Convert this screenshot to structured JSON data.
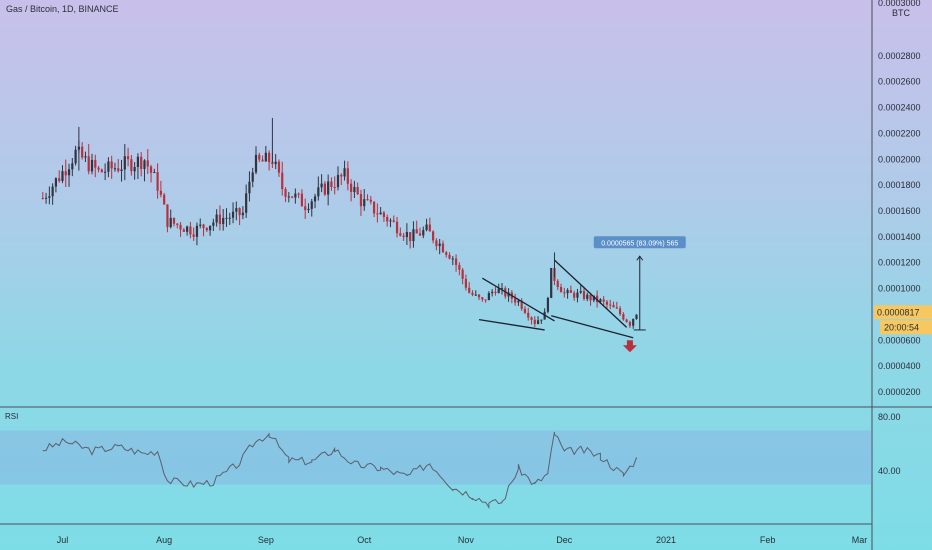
{
  "chart_data": {
    "type": "candlestick",
    "title": "Gas / Bitcoin, 1D, BINANCE",
    "unit": "BTC",
    "y_ticks": [
      "0.0000200",
      "0.0000400",
      "0.0000600",
      "0.0001000",
      "0.0001200",
      "0.0001400",
      "0.0001600",
      "0.0001800",
      "0.0002000",
      "0.0002200",
      "0.0002400",
      "0.0002600",
      "0.0002800"
    ],
    "top_tick": "0.0003000",
    "x_ticks": [
      "Jul",
      "Aug",
      "Sep",
      "Oct",
      "Nov",
      "Dec",
      "2021",
      "Feb",
      "Mar"
    ],
    "ylim": [
      6e-06,
      0.000303
    ],
    "close_series": [
      {
        "date": "2020-06-25",
        "value": 0.00017
      },
      {
        "date": "2020-07-01",
        "value": 0.00019
      },
      {
        "date": "2020-07-05",
        "value": 0.000205
      },
      {
        "date": "2020-07-12",
        "value": 0.00019
      },
      {
        "date": "2020-07-20",
        "value": 0.000196
      },
      {
        "date": "2020-07-26",
        "value": 0.0002
      },
      {
        "date": "2020-07-30",
        "value": 0.00018
      },
      {
        "date": "2020-08-02",
        "value": 0.000152
      },
      {
        "date": "2020-08-10",
        "value": 0.000145
      },
      {
        "date": "2020-08-18",
        "value": 0.000154
      },
      {
        "date": "2020-08-25",
        "value": 0.000158
      },
      {
        "date": "2020-08-28",
        "value": 0.000196
      },
      {
        "date": "2020-09-03",
        "value": 0.0002
      },
      {
        "date": "2020-09-06",
        "value": 0.000178
      },
      {
        "date": "2020-09-13",
        "value": 0.000165
      },
      {
        "date": "2020-09-20",
        "value": 0.00018
      },
      {
        "date": "2020-09-25",
        "value": 0.000187
      },
      {
        "date": "2020-09-30",
        "value": 0.000168
      },
      {
        "date": "2020-10-08",
        "value": 0.000154
      },
      {
        "date": "2020-10-15",
        "value": 0.00014
      },
      {
        "date": "2020-10-20",
        "value": 0.000145
      },
      {
        "date": "2020-10-28",
        "value": 0.000124
      },
      {
        "date": "2020-11-02",
        "value": 9.7e-05
      },
      {
        "date": "2020-11-06",
        "value": 9e-05
      },
      {
        "date": "2020-11-10",
        "value": 0.0001
      },
      {
        "date": "2020-11-17",
        "value": 9e-05
      },
      {
        "date": "2020-11-22",
        "value": 7.4e-05
      },
      {
        "date": "2020-11-25",
        "value": 8e-05
      },
      {
        "date": "2020-11-27",
        "value": 0.000112
      },
      {
        "date": "2020-12-01",
        "value": 9.6e-05
      },
      {
        "date": "2020-12-06",
        "value": 9.5e-05
      },
      {
        "date": "2020-12-12",
        "value": 9e-05
      },
      {
        "date": "2020-12-17",
        "value": 8.3e-05
      },
      {
        "date": "2020-12-21",
        "value": 7.3e-05
      },
      {
        "date": "2020-12-23",
        "value": 8.17e-05
      }
    ],
    "last_price": "0.0000817",
    "countdown": "20:00:54",
    "measure_label": "0.0000565 (83.09%) 565",
    "rsi": {
      "label": "RSI",
      "ticks": [
        "80.00",
        "40.00"
      ],
      "band_upper": 70,
      "band_lower": 30,
      "values": [
        {
          "date": "2020-06-25",
          "value": 56
        },
        {
          "date": "2020-07-02",
          "value": 62
        },
        {
          "date": "2020-07-10",
          "value": 55
        },
        {
          "date": "2020-07-18",
          "value": 58
        },
        {
          "date": "2020-07-26",
          "value": 53
        },
        {
          "date": "2020-07-30",
          "value": 55
        },
        {
          "date": "2020-08-02",
          "value": 33
        },
        {
          "date": "2020-08-10",
          "value": 30
        },
        {
          "date": "2020-08-16",
          "value": 32
        },
        {
          "date": "2020-08-24",
          "value": 46
        },
        {
          "date": "2020-08-28",
          "value": 60
        },
        {
          "date": "2020-09-02",
          "value": 68
        },
        {
          "date": "2020-09-08",
          "value": 48
        },
        {
          "date": "2020-09-15",
          "value": 47
        },
        {
          "date": "2020-09-22",
          "value": 56
        },
        {
          "date": "2020-09-28",
          "value": 45
        },
        {
          "date": "2020-10-06",
          "value": 42
        },
        {
          "date": "2020-10-14",
          "value": 36
        },
        {
          "date": "2020-10-21",
          "value": 46
        },
        {
          "date": "2020-10-28",
          "value": 28
        },
        {
          "date": "2020-11-03",
          "value": 22
        },
        {
          "date": "2020-11-08",
          "value": 16
        },
        {
          "date": "2020-11-12",
          "value": 17
        },
        {
          "date": "2020-11-17",
          "value": 42
        },
        {
          "date": "2020-11-22",
          "value": 30
        },
        {
          "date": "2020-11-26",
          "value": 38
        },
        {
          "date": "2020-11-28",
          "value": 68
        },
        {
          "date": "2020-12-01",
          "value": 54
        },
        {
          "date": "2020-12-06",
          "value": 56
        },
        {
          "date": "2020-12-12",
          "value": 51
        },
        {
          "date": "2020-12-19",
          "value": 37
        },
        {
          "date": "2020-12-23",
          "value": 49
        }
      ]
    }
  },
  "colors": {
    "up": "#2e3440",
    "down": "#b7303d",
    "last_price_bg": "#f6c85f",
    "measure_bg": "#5b8fc7",
    "arrow": "#b7303d"
  }
}
